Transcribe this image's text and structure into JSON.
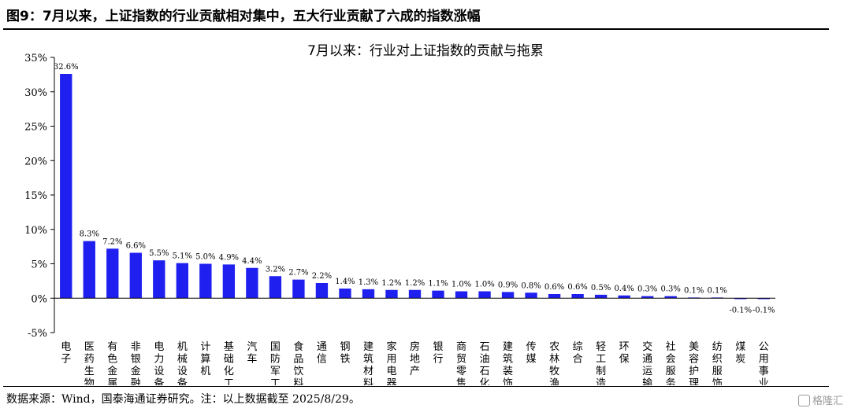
{
  "figure_title": "图9：7月以来，上证指数的行业贡献相对集中，五大行业贡献了六成的指数涨幅",
  "source_note": "数据来源：Wind，国泰海通证券研究。注：以上数据截至 2025/8/29。",
  "watermark": "格隆汇",
  "colors": {
    "bar": "#1f1ff0",
    "axis": "#000000"
  },
  "chart_data": {
    "type": "bar",
    "title": "7月以来：行业对上证指数的贡献与拖累",
    "xlabel": "",
    "ylabel": "",
    "ylim": [
      -5,
      35
    ],
    "yticks": [
      -5,
      0,
      5,
      10,
      15,
      20,
      25,
      30,
      35
    ],
    "ytick_labels": [
      "-5%",
      "0%",
      "5%",
      "10%",
      "15%",
      "20%",
      "25%",
      "30%",
      "35%"
    ],
    "grid": false,
    "categories": [
      "电子",
      "医药生物",
      "有色金属",
      "非银金融",
      "电力设备",
      "机械设备",
      "计算机",
      "基础化工",
      "汽车",
      "国防军工",
      "食品饮料",
      "通信",
      "钢铁",
      "建筑材料",
      "家用电器",
      "房地产",
      "银行",
      "商贸零售",
      "石油石化",
      "建筑装饰",
      "传媒",
      "农林牧渔",
      "综合",
      "轻工制造",
      "环保",
      "交通运输",
      "社会服务",
      "美容护理",
      "纺织服饰",
      "煤炭",
      "公用事业"
    ],
    "values": [
      32.6,
      8.3,
      7.2,
      6.6,
      5.5,
      5.1,
      5.0,
      4.9,
      4.4,
      3.2,
      2.7,
      2.2,
      1.4,
      1.3,
      1.2,
      1.2,
      1.1,
      1.0,
      1.0,
      0.9,
      0.8,
      0.6,
      0.6,
      0.5,
      0.4,
      0.3,
      0.3,
      0.1,
      0.1,
      -0.1,
      -0.1
    ],
    "data_labels": [
      "32.6%",
      "8.3%",
      "7.2%",
      "6.6%",
      "5.5%",
      "5.1%",
      "5.0%",
      "4.9%",
      "4.4%",
      "3.2%",
      "2.7%",
      "2.2%",
      "1.4%",
      "1.3%",
      "1.2%",
      "1.2%",
      "1.1%",
      "1.0%",
      "1.0%",
      "0.9%",
      "0.8%",
      "0.6%",
      "0.6%",
      "0.5%",
      "0.4%",
      "0.3%",
      "0.3%",
      "0.1%",
      "0.1%",
      "-0.1%",
      "-0.1%"
    ]
  }
}
